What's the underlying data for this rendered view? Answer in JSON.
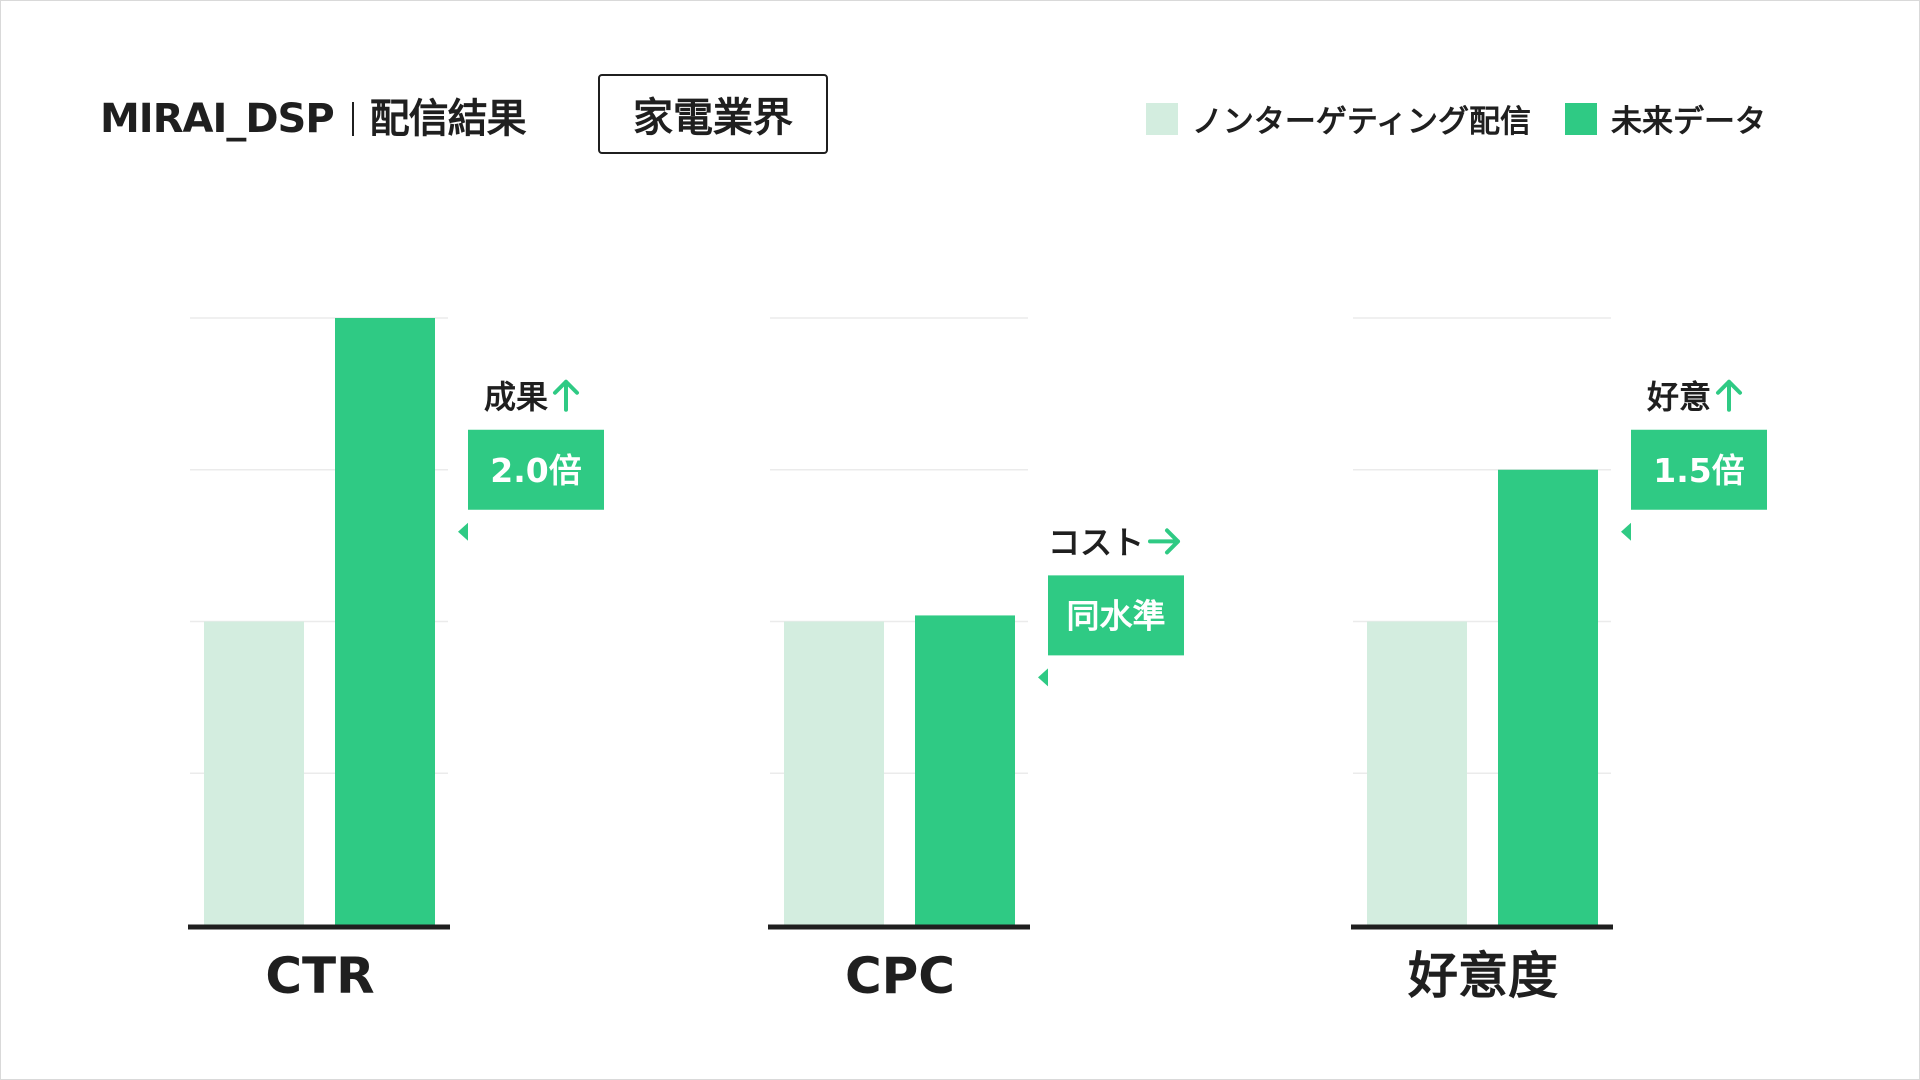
{
  "header": {
    "brand": "MIRAI_DSP",
    "subtitle": "配信結果",
    "industry": "家電業界"
  },
  "legend": [
    {
      "label": "ノンターゲティング配信",
      "color": "#d3eddf"
    },
    {
      "label": "未来データ",
      "color": "#2fca84"
    }
  ],
  "chart_data": {
    "type": "bar",
    "categories": [
      "CTR",
      "CPC",
      "好意度"
    ],
    "series": [
      {
        "name": "ノンターゲティング配信",
        "values": [
          1.0,
          1.0,
          1.0
        ],
        "color": "#d3eddf"
      },
      {
        "name": "未来データ",
        "values": [
          2.0,
          1.02,
          1.5
        ],
        "color": "#2fca84"
      }
    ],
    "ylim": [
      0,
      2
    ],
    "grid": true,
    "legend_position": "top-right",
    "annotations": [
      {
        "category": "CTR",
        "title": "成果",
        "arrow": "up",
        "value": "2.0倍"
      },
      {
        "category": "CPC",
        "title": "コスト",
        "arrow": "right",
        "value": "同水準"
      },
      {
        "category": "好意度",
        "title": "好意",
        "arrow": "up",
        "value": "1.5倍"
      }
    ]
  }
}
